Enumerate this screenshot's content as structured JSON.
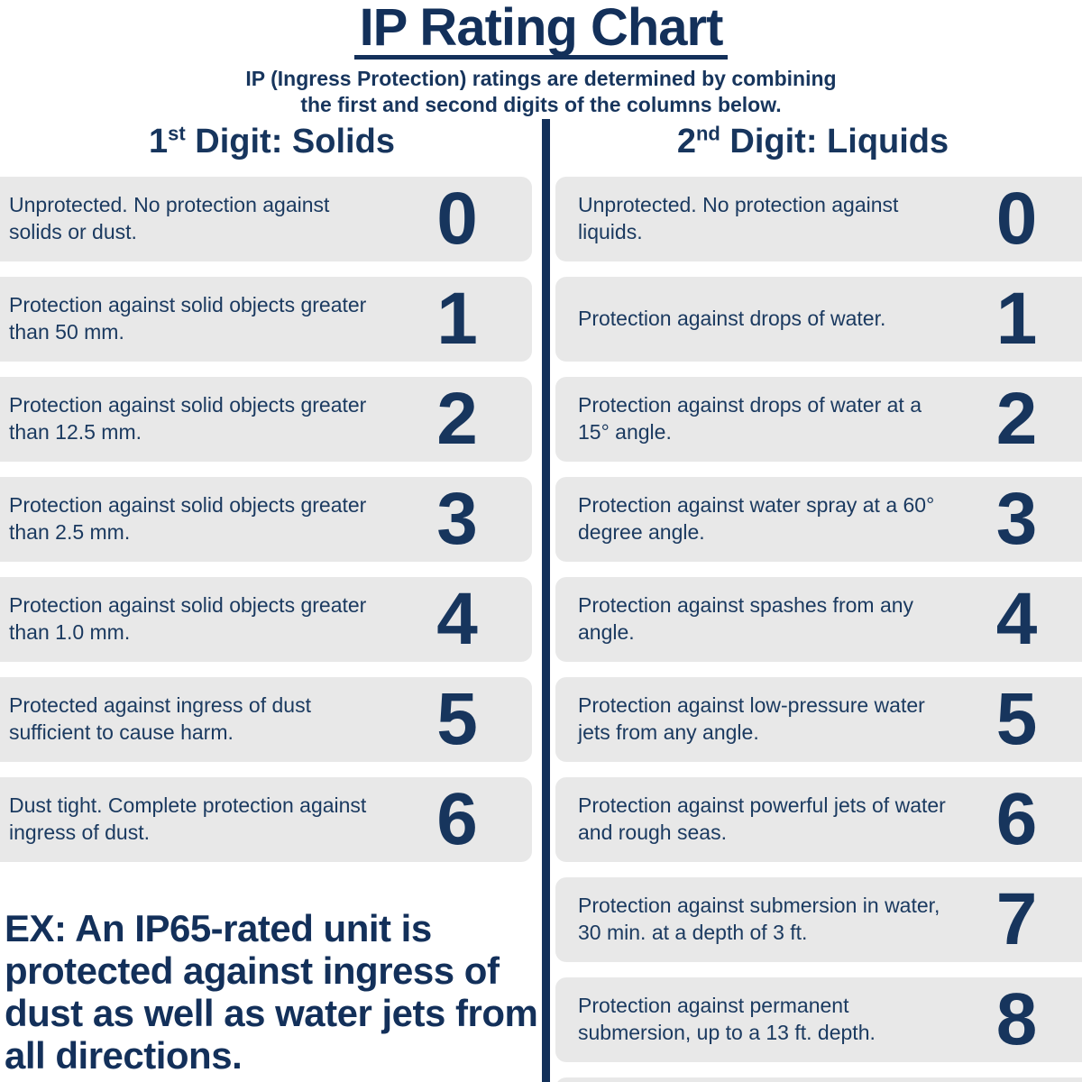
{
  "header": {
    "title": "IP Rating Chart",
    "subtitle_line1": "IP (Ingress Protection) ratings are determined by combining",
    "subtitle_line2": "the first and second digits of the columns below."
  },
  "columns": {
    "solids": {
      "heading_number": "1",
      "heading_ordinal": "st",
      "heading_rest": " Digit: Solids",
      "rows": [
        {
          "digit": "0",
          "text": "Unprotected. No protection against solids or dust."
        },
        {
          "digit": "1",
          "text": "Protection against solid objects greater than 50 mm."
        },
        {
          "digit": "2",
          "text": "Protection against solid objects greater than 12.5 mm."
        },
        {
          "digit": "3",
          "text": "Protection against solid objects greater than 2.5 mm."
        },
        {
          "digit": "4",
          "text": "Protection against solid objects greater than 1.0 mm."
        },
        {
          "digit": "5",
          "text": "Protected against ingress of dust sufficient to cause harm."
        },
        {
          "digit": "6",
          "text": "Dust tight. Complete protection against ingress of dust."
        }
      ]
    },
    "liquids": {
      "heading_number": "2",
      "heading_ordinal": "nd",
      "heading_rest": " Digit: Liquids",
      "rows": [
        {
          "digit": "0",
          "text": "Unprotected. No protection against liquids."
        },
        {
          "digit": "1",
          "text": "Protection against drops of water."
        },
        {
          "digit": "2",
          "text": "Protection against drops of water at a 15° angle."
        },
        {
          "digit": "3",
          "text": "Protection against water spray at a 60° degree angle."
        },
        {
          "digit": "4",
          "text": "Protection against spashes from any angle."
        },
        {
          "digit": "5",
          "text": "Protection against low-pressure water jets from any angle."
        },
        {
          "digit": "6",
          "text": "Protection against powerful jets of water and rough seas."
        },
        {
          "digit": "7",
          "text": "Protection against submersion in water, 30 min. at a depth of 3 ft."
        },
        {
          "digit": "8",
          "text": "Protection against permanent submersion, up to a 13 ft. depth."
        }
      ]
    }
  },
  "example": {
    "text": "EX: An IP65-rated unit is protected against ingress of dust as well as water jets from all directions."
  },
  "colors": {
    "navy": "#17355d",
    "navy_dark": "#13305a",
    "card_gray": "#e8e8e8",
    "background": "#ffffff"
  }
}
